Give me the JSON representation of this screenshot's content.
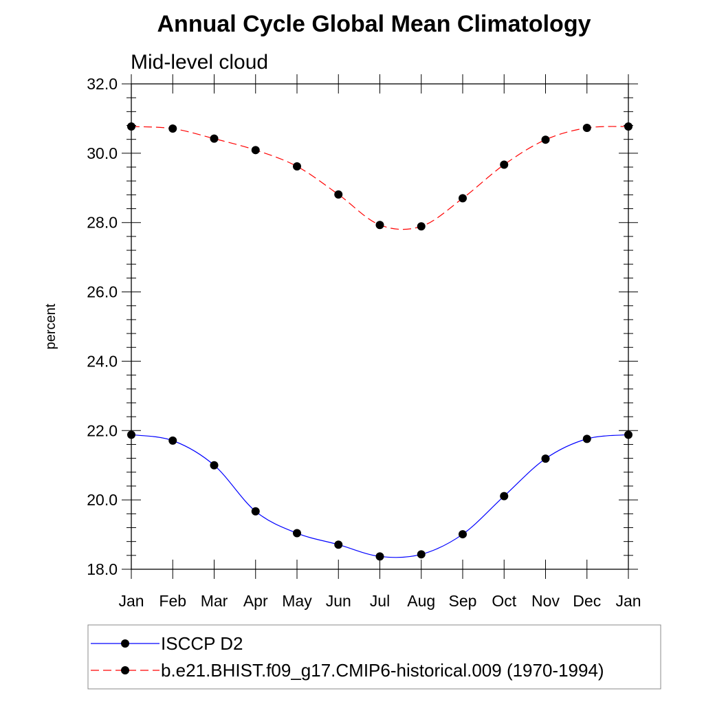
{
  "chart_data": {
    "type": "line",
    "title": "Annual Cycle Global Mean Climatology",
    "subtitle": "Mid-level cloud",
    "ylabel": "percent",
    "xlabel": "",
    "categories": [
      "Jan",
      "Feb",
      "Mar",
      "Apr",
      "May",
      "Jun",
      "Jul",
      "Aug",
      "Sep",
      "Oct",
      "Nov",
      "Dec",
      "Jan"
    ],
    "ylim": [
      18.0,
      32.0
    ],
    "yticks": [
      "18.0",
      "20.0",
      "22.0",
      "24.0",
      "26.0",
      "28.0",
      "30.0",
      "32.0"
    ],
    "grid": false,
    "legend_position": "bottom",
    "series": [
      {
        "name": "ISCCP D2",
        "color": "#0000ff",
        "line_style": "solid",
        "marker": "filled-circle",
        "values": [
          21.88,
          21.71,
          21.0,
          19.67,
          19.04,
          18.71,
          18.37,
          18.43,
          19.01,
          20.11,
          21.19,
          21.76,
          21.88
        ]
      },
      {
        "name": "b.e21.BHIST.f09_g17.CMIP6-historical.009 (1970-1994)",
        "color": "#ff0000",
        "line_style": "dashed",
        "marker": "filled-circle",
        "values": [
          30.77,
          30.71,
          30.42,
          30.09,
          29.62,
          28.81,
          27.93,
          27.89,
          28.7,
          29.67,
          30.39,
          30.73,
          30.77
        ]
      }
    ]
  }
}
